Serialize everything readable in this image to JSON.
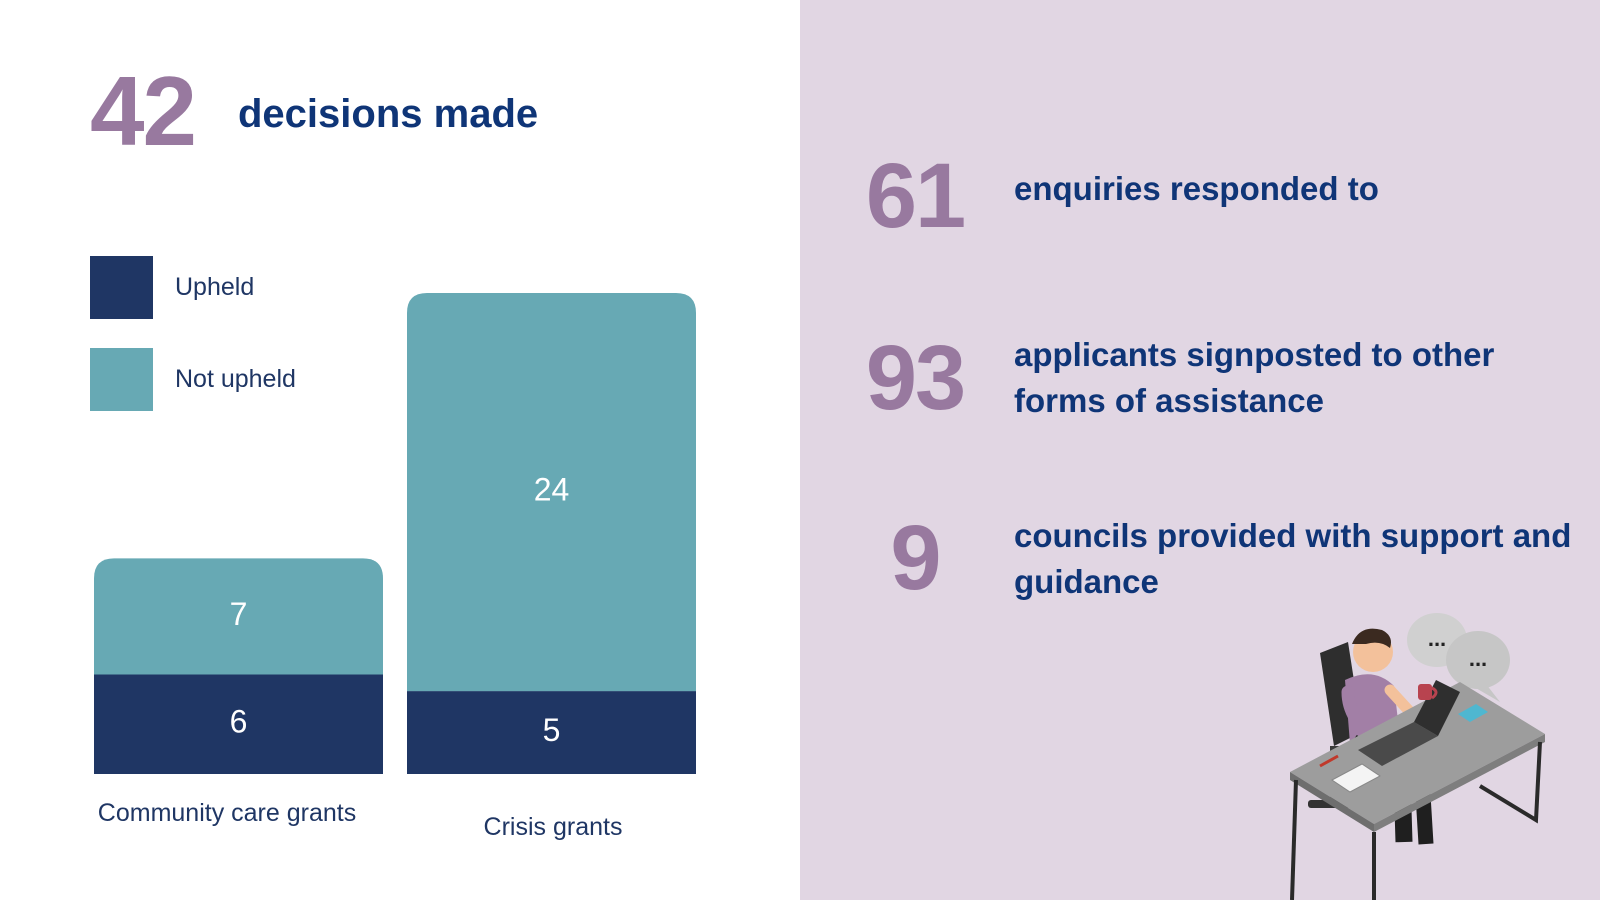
{
  "summary": {
    "total_number": "42",
    "total_label": "decisions made"
  },
  "legend": {
    "upheld": "Upheld",
    "not_upheld": "Not upheld"
  },
  "colors": {
    "upheld": "#1f3664",
    "not_upheld": "#67a9b4",
    "accent_number": "#98799f",
    "heading": "#0f3577",
    "panel_background": "#e1d6e3"
  },
  "chart_data": {
    "type": "bar",
    "stacked": true,
    "categories": [
      "Community care grants",
      "Crisis grants"
    ],
    "series": [
      {
        "name": "Upheld",
        "values": [
          6,
          5
        ]
      },
      {
        "name": "Not upheld",
        "values": [
          7,
          24
        ]
      }
    ],
    "title": "",
    "xlabel": "",
    "ylabel": "",
    "ylim": [
      0,
      29
    ],
    "grid": false,
    "legend_position": "top-left"
  },
  "stats": [
    {
      "number": "61",
      "text": "enquiries responded to"
    },
    {
      "number": "93",
      "text": "applicants signposted to other forms of assistance"
    },
    {
      "number": "9",
      "text": "councils provided with support and guidance"
    }
  ],
  "illustration": {
    "icon": "person-at-desk-with-laptop-icon",
    "speech_bubble_1": "...",
    "speech_bubble_2": "..."
  }
}
